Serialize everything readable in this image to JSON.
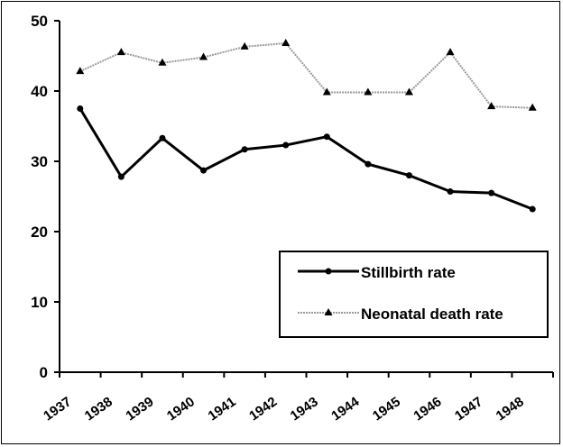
{
  "chart_data": {
    "type": "line",
    "categories": [
      "1937",
      "1938",
      "1939",
      "1940",
      "1941",
      "1942",
      "1943",
      "1944",
      "1945",
      "1946",
      "1947",
      "1948"
    ],
    "x": [
      1937.5,
      1938.5,
      1939.5,
      1940.5,
      1941.5,
      1942.5,
      1943.5,
      1944.5,
      1945.5,
      1946.5,
      1947.5,
      1948.5
    ],
    "series": [
      {
        "name": "Stillbirth rate",
        "values": [
          37.5,
          27.8,
          33.3,
          28.7,
          31.7,
          32.3,
          33.5,
          29.6,
          28.0,
          25.7,
          25.5,
          23.2
        ],
        "color": "#000000",
        "marker": "circle"
      },
      {
        "name": "Neonatal death rate",
        "values": [
          42.8,
          45.5,
          44.0,
          44.8,
          46.3,
          46.8,
          39.8,
          39.8,
          39.8,
          45.5,
          37.8,
          37.6
        ],
        "color": "#9a9a9a",
        "marker": "triangle"
      }
    ],
    "yticks": [
      0,
      10,
      20,
      30,
      40,
      50
    ],
    "ylim": [
      0,
      50
    ],
    "xlim": [
      1937,
      1949
    ],
    "grid": false,
    "legend": "bottom-right"
  }
}
